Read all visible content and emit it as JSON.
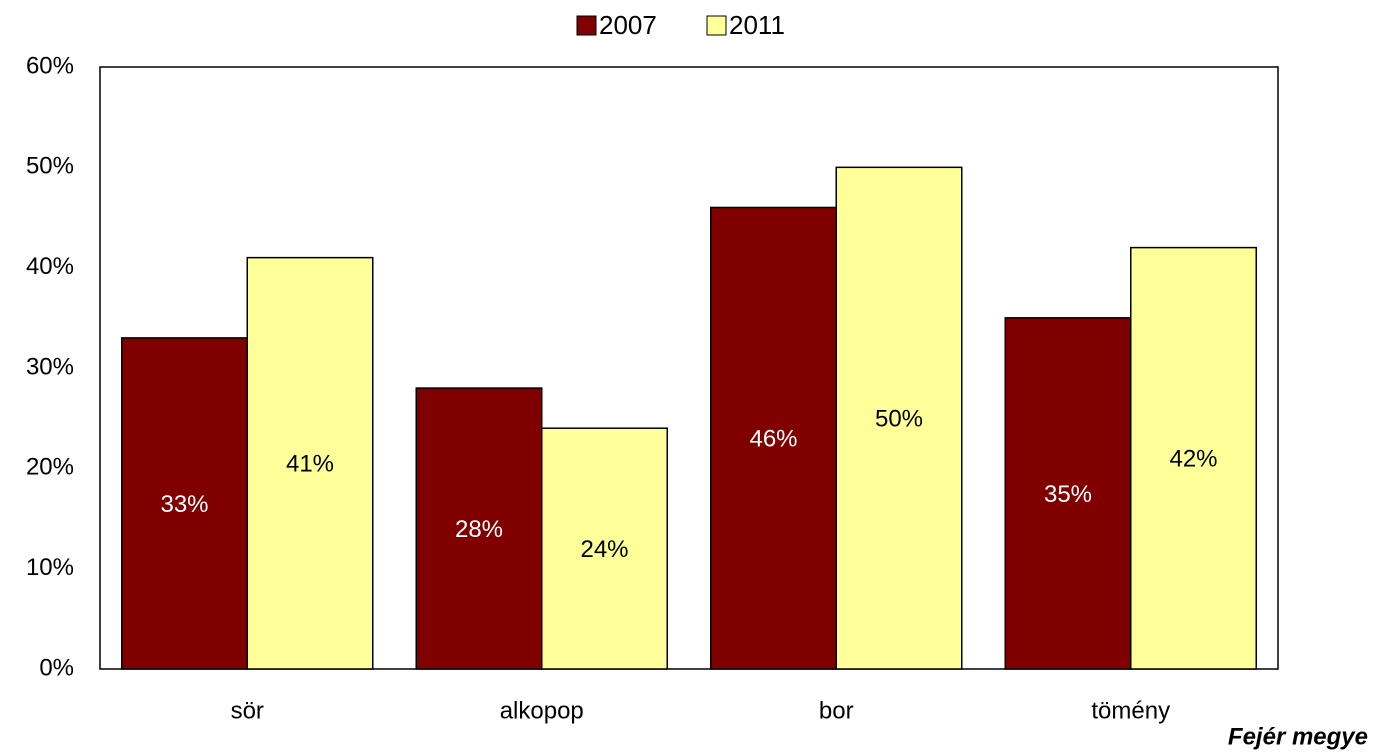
{
  "chart_data": {
    "type": "bar",
    "categories": [
      "sör",
      "alkopop",
      "bor",
      "tömény"
    ],
    "series": [
      {
        "name": "2007",
        "color": "#800000",
        "label_color": "#ffffff",
        "values": [
          33,
          28,
          46,
          35
        ],
        "value_labels": [
          "33%",
          "28%",
          "46%",
          "35%"
        ]
      },
      {
        "name": "2011",
        "color": "#ffff99",
        "label_color": "#000000",
        "values": [
          41,
          24,
          50,
          42
        ],
        "value_labels": [
          "41%",
          "24%",
          "50%",
          "42%"
        ]
      }
    ],
    "ylim": [
      0,
      60
    ],
    "yticks": [
      {
        "value": 0,
        "label": "0%"
      },
      {
        "value": 10,
        "label": "10%"
      },
      {
        "value": 20,
        "label": "20%"
      },
      {
        "value": 30,
        "label": "30%"
      },
      {
        "value": 40,
        "label": "40%"
      },
      {
        "value": 50,
        "label": "50%"
      },
      {
        "value": 60,
        "label": "60%"
      }
    ],
    "grid": true,
    "legend": "top",
    "annotation": "Fejér megye"
  }
}
